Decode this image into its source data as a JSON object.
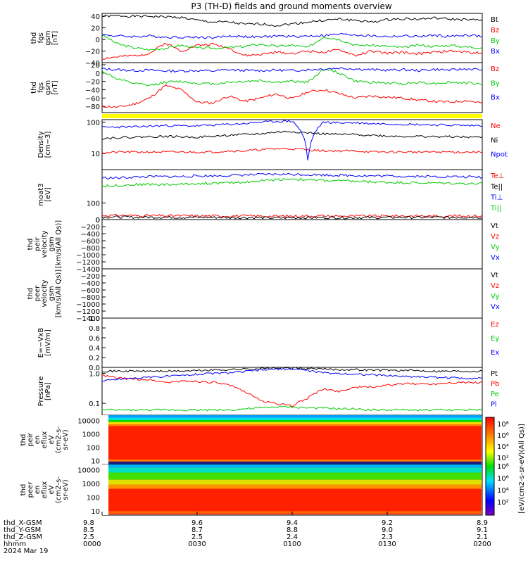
{
  "title": "P3 (TH-D) fields and ground moments overview",
  "colors": {
    "black": "#000000",
    "red": "#ff0000",
    "green": "#00cc00",
    "blue": "#0000ff",
    "yellow": "#ffff00",
    "frame": "#000000"
  },
  "chart_data": [
    {
      "panel": "thd_fgs_gsm",
      "type": "line",
      "ylabel": [
        "thd",
        "fgs",
        "gsm",
        "[nT]"
      ],
      "ylim": [
        -40,
        45
      ],
      "yticks": [
        "40",
        "20",
        "0",
        "−20",
        "−40"
      ],
      "legend": [
        {
          "name": "Bt",
          "color": "black"
        },
        {
          "name": "Bz",
          "color": "red"
        },
        {
          "name": "By",
          "color": "green"
        },
        {
          "name": "Bx",
          "color": "blue"
        }
      ],
      "series": [
        {
          "name": "Bt",
          "values": [
            40,
            41,
            40,
            40,
            39,
            38,
            33,
            30,
            30,
            26,
            27,
            24,
            27,
            30,
            33,
            35,
            33,
            30,
            34,
            36,
            35,
            37,
            35,
            34,
            33
          ]
        },
        {
          "name": "Bz",
          "values": [
            -33,
            -30,
            -28,
            -24,
            -6,
            -20,
            -10,
            -8,
            -15,
            -28,
            -26,
            -22,
            -24,
            -20,
            -22,
            -18,
            -28,
            -20,
            -24,
            -22,
            -25,
            -22,
            -20,
            -22,
            -24
          ]
        },
        {
          "name": "By",
          "values": [
            8,
            -8,
            -14,
            -18,
            -15,
            -10,
            -15,
            -15,
            -14,
            -12,
            -8,
            -12,
            -10,
            -14,
            5,
            0,
            -10,
            -10,
            -12,
            -14,
            -10,
            -12,
            -10,
            -13,
            -14
          ]
        },
        {
          "name": "Bx",
          "values": [
            8,
            6,
            5,
            6,
            4,
            4,
            4,
            3,
            6,
            5,
            4,
            6,
            5,
            6,
            7,
            9,
            8,
            6,
            5,
            6,
            5,
            7,
            5,
            8,
            5
          ]
        }
      ]
    },
    {
      "panel": "thd_fgs_gsm_b",
      "type": "line",
      "ylabel": [
        "thd",
        "fgs",
        "gsm",
        "[nT]"
      ],
      "ylim": [
        -95,
        25
      ],
      "yticks": [
        "20",
        "0",
        "−20",
        "−40",
        "−60",
        "−80"
      ],
      "legend": [
        {
          "name": "Bz",
          "color": "red"
        },
        {
          "name": "By",
          "color": "green"
        },
        {
          "name": "Bx",
          "color": "blue"
        }
      ],
      "series": [
        {
          "name": "Bz",
          "values": [
            -80,
            -82,
            -75,
            -60,
            -30,
            -40,
            -70,
            -72,
            -55,
            -68,
            -60,
            -50,
            -62,
            -45,
            -40,
            -50,
            -60,
            -55,
            -58,
            -60,
            -65,
            -68,
            -70,
            -66,
            -72
          ]
        },
        {
          "name": "By",
          "values": [
            5,
            -15,
            -25,
            -30,
            -22,
            -20,
            -25,
            -26,
            -22,
            -20,
            -18,
            -22,
            -20,
            -22,
            10,
            0,
            -20,
            -22,
            -24,
            -26,
            -22,
            -25,
            -22,
            -24,
            -26
          ]
        },
        {
          "name": "Bx",
          "values": [
            10,
            8,
            6,
            7,
            5,
            5,
            6,
            5,
            8,
            6,
            6,
            7,
            6,
            8,
            10,
            12,
            10,
            8,
            7,
            8,
            6,
            9,
            7,
            10,
            8
          ]
        }
      ]
    },
    {
      "panel": "thd_density",
      "type": "line",
      "ylabel": [
        "Density",
        "[cm−3]"
      ],
      "ylim": [
        3,
        120
      ],
      "yscale": "log",
      "yticks": [
        "100",
        "10"
      ],
      "legend": [
        {
          "name": "Ne",
          "color": "red"
        },
        {
          "name": "Ni",
          "color": "black"
        },
        {
          "name": "Npot",
          "color": "blue"
        }
      ],
      "series": [
        {
          "name": "Ne",
          "values": [
            10,
            11,
            11,
            11,
            11,
            11,
            11,
            11,
            12,
            12,
            13,
            14,
            14,
            13,
            12,
            12,
            12,
            11,
            11,
            11,
            11,
            11,
            11,
            11,
            11
          ]
        },
        {
          "name": "Ni",
          "values": [
            30,
            32,
            33,
            34,
            35,
            34,
            33,
            35,
            38,
            40,
            42,
            48,
            50,
            45,
            42,
            40,
            40,
            38,
            36,
            35,
            35,
            34,
            34,
            33,
            33
          ]
        },
        {
          "name": "Npot",
          "values": [
            68,
            70,
            70,
            74,
            78,
            76,
            76,
            80,
            85,
            90,
            100,
            105,
            108,
            4,
            100,
            95,
            95,
            90,
            88,
            86,
            84,
            82,
            80,
            78,
            78
          ]
        }
      ]
    },
    {
      "panel": "thd_temperature",
      "type": "line",
      "ylabel": [
        "moat3",
        "[eV]"
      ],
      "ylim": [
        0,
        300
      ],
      "yticks": [
        "100",
        "0"
      ],
      "legend": [
        {
          "name": "Te⊥",
          "color": "red"
        },
        {
          "name": "Te||",
          "color": "black"
        },
        {
          "name": "Ti⊥",
          "color": "blue"
        },
        {
          "name": "Ti||",
          "color": "green"
        }
      ],
      "series": [
        {
          "name": "Te⊥",
          "values": [
            25,
            25,
            24,
            24,
            23,
            23,
            22,
            22,
            22,
            22,
            21,
            20,
            21,
            22,
            22,
            21,
            21,
            22,
            22,
            22,
            22,
            21,
            22,
            22,
            22
          ]
        },
        {
          "name": "Te||",
          "values": [
            15,
            15,
            14,
            14,
            14,
            13,
            13,
            13,
            12,
            12,
            11,
            10,
            11,
            12,
            12,
            12,
            12,
            12,
            13,
            13,
            13,
            13,
            13,
            14,
            14
          ]
        },
        {
          "name": "Ti⊥",
          "values": [
            250,
            250,
            255,
            258,
            258,
            258,
            262,
            262,
            265,
            268,
            270,
            272,
            272,
            270,
            268,
            266,
            265,
            262,
            262,
            260,
            260,
            258,
            258,
            256,
            255
          ]
        },
        {
          "name": "Ti||",
          "values": [
            200,
            205,
            210,
            212,
            210,
            212,
            216,
            218,
            220,
            225,
            232,
            240,
            245,
            238,
            235,
            232,
            230,
            226,
            224,
            222,
            220,
            220,
            218,
            216,
            215
          ]
        }
      ]
    },
    {
      "panel": "thd_peir_velocity",
      "type": "line",
      "ylabel": [
        "thd",
        "peir",
        "velocity",
        "gsm",
        "[km/s(All Qs)]"
      ],
      "ylim": [
        -1400,
        0
      ],
      "yticks": [
        "0",
        "−200",
        "−400",
        "−600",
        "−800",
        "−1000",
        "−1200",
        "−1400"
      ],
      "legend": [
        {
          "name": "Vt",
          "color": "black"
        },
        {
          "name": "Vz",
          "color": "red"
        },
        {
          "name": "Vy",
          "color": "green"
        },
        {
          "name": "Vx",
          "color": "blue"
        }
      ],
      "series": []
    },
    {
      "panel": "thd_peer_velocity",
      "type": "line",
      "ylabel": [
        "thd",
        "peer",
        "velocity",
        "gsm",
        "[km/s(All Qs)]"
      ],
      "ylim": [
        -1400,
        0
      ],
      "yticks": [
        "0",
        "−200",
        "−400",
        "−600",
        "−800",
        "−1000",
        "−1200",
        "−1400"
      ],
      "legend": [
        {
          "name": "Vt",
          "color": "black"
        },
        {
          "name": "Vz",
          "color": "red"
        },
        {
          "name": "Vy",
          "color": "green"
        },
        {
          "name": "Vx",
          "color": "blue"
        }
      ],
      "series": []
    },
    {
      "panel": "thd_e_vxb",
      "type": "line",
      "ylabel": [
        "E=−VxB",
        "[mV/m]"
      ],
      "ylim": [
        0,
        1
      ],
      "yticks": [
        "1.0",
        "0.8",
        "0.6",
        "0.4",
        "0.2",
        "0.0"
      ],
      "legend": [
        {
          "name": "Ez",
          "color": "red"
        },
        {
          "name": "Ey",
          "color": "green"
        },
        {
          "name": "Ex",
          "color": "blue"
        }
      ],
      "series": []
    },
    {
      "panel": "thd_pressure",
      "type": "line",
      "ylabel": [
        "Pressure",
        "[nPa]"
      ],
      "ylim": [
        0.04,
        1.6
      ],
      "yscale": "log",
      "yticks": [
        "1.0",
        "0.1"
      ],
      "legend": [
        {
          "name": "Pt",
          "color": "black"
        },
        {
          "name": "Pb",
          "color": "red"
        },
        {
          "name": "Pe",
          "color": "green"
        },
        {
          "name": "Pi",
          "color": "blue"
        }
      ],
      "series": [
        {
          "name": "Pt",
          "values": [
            1.2,
            1.2,
            1.2,
            1.2,
            1.2,
            1.2,
            1.25,
            1.3,
            1.35,
            1.4,
            1.45,
            1.5,
            1.5,
            1.45,
            1.4,
            1.35,
            1.35,
            1.3,
            1.3,
            1.25,
            1.25,
            1.2,
            1.2,
            1.2,
            1.2
          ]
        },
        {
          "name": "Pb",
          "values": [
            0.85,
            0.7,
            0.65,
            0.62,
            0.5,
            0.55,
            0.55,
            0.5,
            0.4,
            0.25,
            0.12,
            0.1,
            0.08,
            0.15,
            0.3,
            0.25,
            0.35,
            0.35,
            0.4,
            0.45,
            0.45,
            0.45,
            0.5,
            0.5,
            0.5
          ]
        },
        {
          "name": "Pe",
          "values": [
            0.06,
            0.06,
            0.06,
            0.06,
            0.06,
            0.06,
            0.06,
            0.06,
            0.06,
            0.065,
            0.07,
            0.075,
            0.075,
            0.07,
            0.07,
            0.065,
            0.065,
            0.06,
            0.06,
            0.06,
            0.06,
            0.06,
            0.06,
            0.06,
            0.06
          ]
        },
        {
          "name": "Pi",
          "values": [
            0.55,
            0.65,
            0.7,
            0.75,
            0.8,
            0.85,
            0.95,
            1.0,
            1.05,
            1.15,
            1.3,
            1.4,
            1.42,
            1.25,
            1.05,
            1.0,
            0.95,
            0.9,
            0.85,
            0.8,
            0.78,
            0.75,
            0.72,
            0.7,
            0.7
          ]
        }
      ]
    },
    {
      "panel": "thd_peir_en_eflux",
      "type": "heatmap",
      "ylabel": [
        "thd",
        "peir",
        "en",
        "eflux",
        "eV",
        "(cm2-s-",
        "sr-eV)"
      ],
      "yscale": "log",
      "ylim": [
        5,
        25000
      ],
      "yticks": [
        "10000",
        "1000",
        "100",
        "10"
      ]
    },
    {
      "panel": "thd_peer_en_eflux",
      "type": "heatmap",
      "ylabel": [
        "thd",
        "peer",
        "en",
        "eflux",
        "eV",
        "(cm2-s-",
        "sr-eV)"
      ],
      "yscale": "log",
      "ylim": [
        5,
        25000
      ],
      "yticks": [
        "10000",
        "1000",
        "100",
        "10"
      ]
    }
  ],
  "colorbar": {
    "label": "[eV/(cm2-s-sr-eV)(All Qs)]",
    "upper_ticks": [
      "10⁸",
      "10⁶",
      "10⁴",
      "10²"
    ],
    "lower_ticks": [
      "10⁸",
      "10⁶",
      "10⁴",
      "10²"
    ]
  },
  "x_axis": {
    "rows": [
      {
        "name": "thd_X-GSM",
        "values": [
          "9.8",
          "9.6",
          "9.4",
          "9.2",
          "8.9"
        ]
      },
      {
        "name": "thd_Y-GSM",
        "values": [
          "8.5",
          "8.7",
          "8.8",
          "9.0",
          "9.1"
        ]
      },
      {
        "name": "thd_Z-GSM",
        "values": [
          "2.5",
          "2.5",
          "2.4",
          "2.3",
          "2.1"
        ]
      },
      {
        "name": "hhmm",
        "values": [
          "0000",
          "0030",
          "0100",
          "0130",
          "0200"
        ]
      }
    ],
    "date": "2024 Mar 19"
  }
}
